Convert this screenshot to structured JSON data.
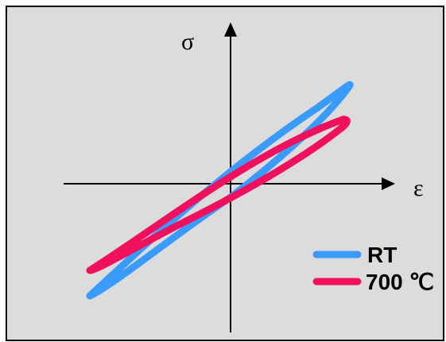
{
  "chart_data": {
    "type": "line",
    "description_free": true,
    "x_axis_label": "ε",
    "y_axis_label": "σ",
    "grid": false,
    "legend_position": "bottom-right",
    "series": [
      {
        "name": "RT",
        "color": "#3A9BFF"
      },
      {
        "name": "700 ℃",
        "color": "#F0105E"
      }
    ]
  },
  "colors": {
    "background": "#DCDCDC",
    "frame": "#000000",
    "axes": "#000000"
  }
}
